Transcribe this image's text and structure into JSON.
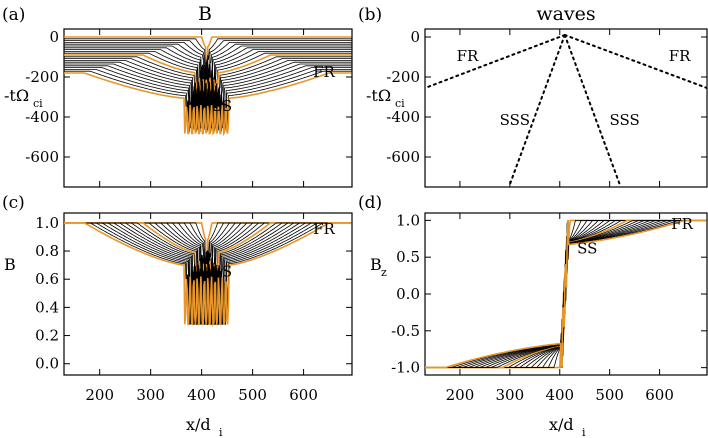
{
  "figure": {
    "panels": [
      {
        "id": "(a)",
        "title": "B",
        "ylabel": "-tΩ",
        "ylabel_sub": "ci",
        "xlabel": "",
        "xlabel_sub": ""
      },
      {
        "id": "(b)",
        "title": "waves",
        "ylabel": "-tΩ",
        "ylabel_sub": "ci",
        "xlabel": "",
        "xlabel_sub": ""
      },
      {
        "id": "(c)",
        "title": "",
        "ylabel": "B",
        "ylabel_sub": "",
        "xlabel": "x/d",
        "xlabel_sub": "i"
      },
      {
        "id": "(d)",
        "title": "",
        "ylabel": "B",
        "ylabel_sub": "z",
        "xlabel": "x/d",
        "xlabel_sub": "i"
      }
    ],
    "colors": {
      "trace": "#000000",
      "highlight": "#e8962a",
      "axis": "#000000"
    }
  },
  "chart_data": [
    {
      "type": "line",
      "panel": "(a)",
      "title": "B",
      "xlabel": "",
      "ylabel": "-tΩci",
      "xlim": [
        130,
        695
      ],
      "ylim": [
        -750,
        40
      ],
      "xticks": [
        200,
        300,
        400,
        500,
        600
      ],
      "xtick_labels": [
        "",
        "",
        "",
        "",
        ""
      ],
      "yticks": [
        0,
        -200,
        -400,
        -600
      ],
      "ytick_labels": [
        "0",
        "-200",
        "-400",
        "-600"
      ],
      "description_of_traces": "stacked magnetic-field profiles offset by time, 21 traces",
      "n_traces": 21,
      "annotations": [
        {
          "text": "SS",
          "x": 440,
          "y": -370
        },
        {
          "text": "FR",
          "x": 640,
          "y": -200
        }
      ]
    },
    {
      "type": "line",
      "panel": "(b)",
      "title": "waves",
      "xlabel": "",
      "ylabel": "-tΩci",
      "xlim": [
        130,
        695
      ],
      "ylim": [
        -750,
        40
      ],
      "xticks": [
        200,
        300,
        400,
        500,
        600
      ],
      "xtick_labels": [
        "",
        "",
        "",
        "",
        ""
      ],
      "yticks": [
        0,
        -200,
        -400,
        -600
      ],
      "ytick_labels": [
        "0",
        "-200",
        "-400",
        "-600"
      ],
      "series": [
        {
          "name": "FR",
          "x": [
            410,
            130
          ],
          "y": [
            10,
            -255
          ]
        },
        {
          "name": "FR",
          "x": [
            410,
            695
          ],
          "y": [
            10,
            -255
          ]
        },
        {
          "name": "SSS",
          "x": [
            410,
            298
          ],
          "y": [
            10,
            -750
          ]
        },
        {
          "name": "SSS",
          "x": [
            410,
            522
          ],
          "y": [
            10,
            -750
          ]
        }
      ],
      "annotations": [
        {
          "text": "FR",
          "x": 215,
          "y": -120
        },
        {
          "text": "FR",
          "x": 640,
          "y": -120
        },
        {
          "text": "SSS",
          "x": 310,
          "y": -440
        },
        {
          "text": "SSS",
          "x": 530,
          "y": -440
        }
      ]
    },
    {
      "type": "line",
      "panel": "(c)",
      "title": "",
      "xlabel": "x/di",
      "ylabel": "B",
      "xlim": [
        130,
        695
      ],
      "ylim": [
        -0.08,
        1.07
      ],
      "xticks": [
        200,
        300,
        400,
        500,
        600
      ],
      "xtick_labels": [
        "200",
        "300",
        "400",
        "500",
        "600"
      ],
      "yticks": [
        0.0,
        0.2,
        0.4,
        0.6,
        0.8,
        1.0
      ],
      "ytick_labels": [
        "0.0",
        "0.2",
        "0.4",
        "0.6",
        "0.8",
        "1.0"
      ],
      "n_traces": 21,
      "annotations": [
        {
          "text": "SS",
          "x": 440,
          "y": 0.62
        },
        {
          "text": "FR",
          "x": 640,
          "y": 0.92
        }
      ]
    },
    {
      "type": "line",
      "panel": "(d)",
      "title": "",
      "xlabel": "x/di",
      "ylabel": "Bz",
      "xlim": [
        130,
        695
      ],
      "ylim": [
        -1.1,
        1.1
      ],
      "xticks": [
        200,
        300,
        400,
        500,
        600
      ],
      "xtick_labels": [
        "200",
        "300",
        "400",
        "500",
        "600"
      ],
      "yticks": [
        1.0,
        0.5,
        0.0,
        -0.5,
        -1.0
      ],
      "ytick_labels": [
        "1.0",
        "0.5",
        "0.0",
        "-0.5",
        "-1.0"
      ],
      "n_traces": 21,
      "annotations": [
        {
          "text": "SS",
          "x": 455,
          "y": 0.55
        },
        {
          "text": "FR",
          "x": 645,
          "y": 0.88
        }
      ]
    }
  ]
}
